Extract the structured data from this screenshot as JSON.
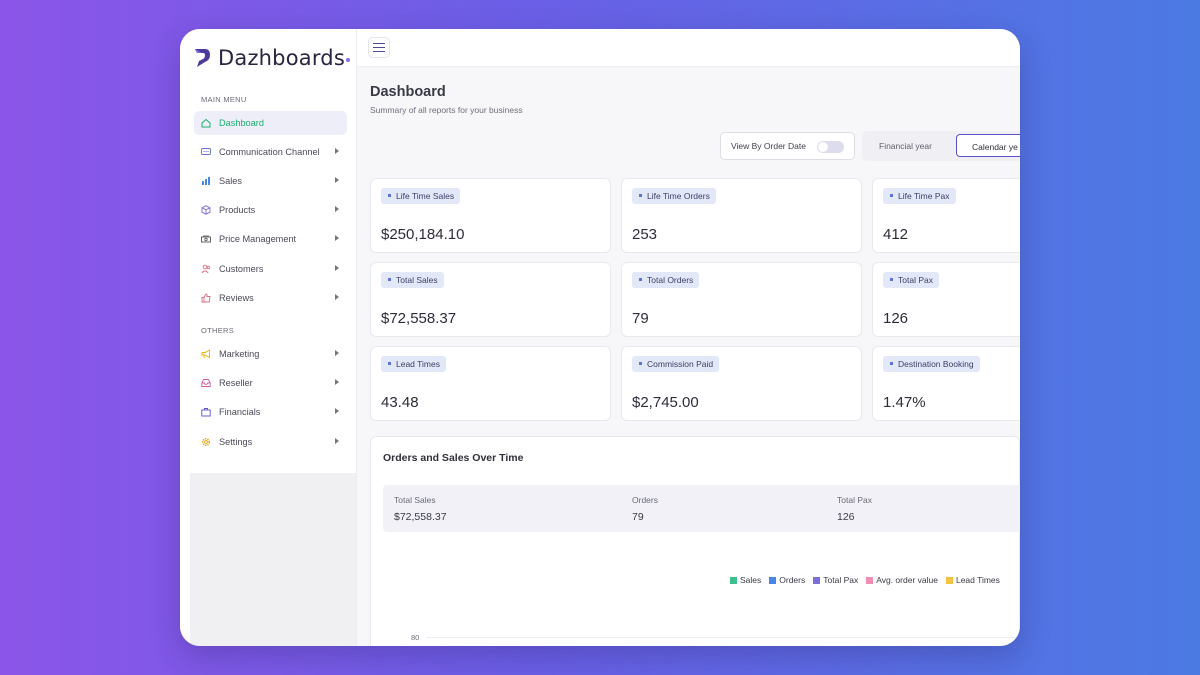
{
  "brand": {
    "name": "Dazhboards"
  },
  "sidebar": {
    "main_menu_label": "MAIN MENU",
    "others_label": "OTHERS",
    "main_items": [
      {
        "label": "Dashboard",
        "icon": "home-icon",
        "active": true
      },
      {
        "label": "Communication Channel",
        "icon": "chat-icon"
      },
      {
        "label": "Sales",
        "icon": "bar-chart-icon"
      },
      {
        "label": "Products",
        "icon": "box-icon"
      },
      {
        "label": "Price Management",
        "icon": "cash-icon"
      },
      {
        "label": "Customers",
        "icon": "users-icon"
      },
      {
        "label": "Reviews",
        "icon": "thumbs-up-icon"
      }
    ],
    "other_items": [
      {
        "label": "Marketing",
        "icon": "megaphone-icon"
      },
      {
        "label": "Reseller",
        "icon": "inbox-icon"
      },
      {
        "label": "Financials",
        "icon": "briefcase-icon"
      },
      {
        "label": "Settings",
        "icon": "gear-icon"
      }
    ]
  },
  "header": {
    "title": "Dashboard",
    "subtitle": "Summary of all reports for your business"
  },
  "controls": {
    "toggle_label": "View By Order Date",
    "toggle_on": false,
    "segment_options": [
      "Financial year",
      "Calendar ye"
    ],
    "selected_segment": "Calendar ye"
  },
  "cards": [
    {
      "label": "Life Time Sales",
      "value": "$250,184.10"
    },
    {
      "label": "Life Time Orders",
      "value": "253"
    },
    {
      "label": "Life Time Pax",
      "value": "412"
    },
    {
      "label": "Total Sales",
      "value": "$72,558.37"
    },
    {
      "label": "Total Orders",
      "value": "79"
    },
    {
      "label": "Total Pax",
      "value": "126"
    },
    {
      "label": "Lead Times",
      "value": "43.48"
    },
    {
      "label": "Commission Paid",
      "value": "$2,745.00"
    },
    {
      "label": "Destination Booking",
      "value": "1.47%"
    }
  ],
  "chart_section": {
    "title": "Orders and Sales Over Time",
    "summary": [
      {
        "label": "Total Sales",
        "value": "$72,558.37"
      },
      {
        "label": "Orders",
        "value": "79"
      },
      {
        "label": "Total Pax",
        "value": "126"
      }
    ],
    "legend": [
      {
        "name": "Sales",
        "color": "#3cc08c"
      },
      {
        "name": "Orders",
        "color": "#4a86e8"
      },
      {
        "name": "Total Pax",
        "color": "#7b6fd9"
      },
      {
        "name": "Avg. order value",
        "color": "#f28db2"
      },
      {
        "name": "Lead Times",
        "color": "#f5c242"
      }
    ],
    "y_tick_top": "80"
  },
  "colors": {
    "accent": "#5a50c9",
    "active_text": "#19b06d"
  }
}
